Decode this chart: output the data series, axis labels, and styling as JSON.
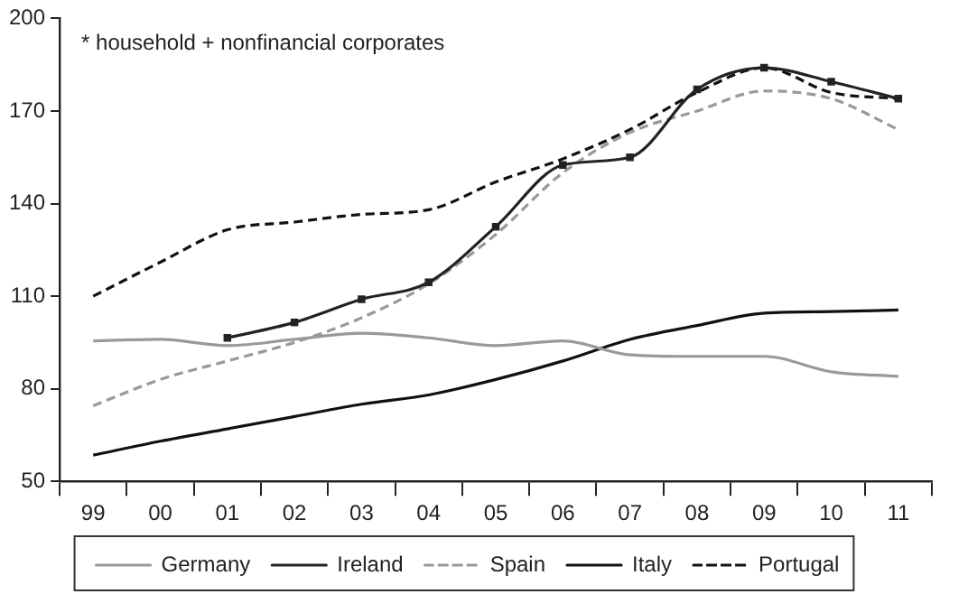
{
  "chart_data": {
    "type": "line",
    "annotations": [
      "* household + nonfinancial corporates"
    ],
    "categories": [
      "99",
      "00",
      "01",
      "02",
      "03",
      "04",
      "05",
      "06",
      "07",
      "08",
      "09",
      "10",
      "11"
    ],
    "ylim": [
      50,
      200
    ],
    "yticks": [
      50,
      80,
      110,
      140,
      170,
      200
    ],
    "legend": "bottom",
    "series": [
      {
        "name": "Germany",
        "color": "#999999",
        "line_style": "solid",
        "marker": "none",
        "values": [
          95.5,
          96,
          94,
          96,
          98,
          96.5,
          94,
          95.5,
          91,
          90.5,
          90.5,
          85.5,
          84
        ]
      },
      {
        "name": "Ireland",
        "color": "#222222",
        "line_style": "solid",
        "marker": "square",
        "values": [
          null,
          null,
          96.5,
          101.5,
          109,
          114.5,
          132.5,
          152.5,
          155,
          177,
          184,
          179.5,
          174
        ]
      },
      {
        "name": "Spain",
        "color": "#999999",
        "line_style": "dashed",
        "marker": "none",
        "values": [
          74.5,
          83,
          89,
          95,
          103,
          114,
          130,
          150,
          163,
          170,
          176.5,
          174,
          164
        ]
      },
      {
        "name": "Italy",
        "color": "#111111",
        "line_style": "solid",
        "marker": "none",
        "values": [
          58.5,
          63,
          67,
          71,
          75,
          78,
          83,
          89,
          96,
          100.5,
          104.5,
          105,
          105.5
        ]
      },
      {
        "name": "Portugal",
        "color": "#111111",
        "line_style": "dashed",
        "marker": "none",
        "values": [
          110,
          121,
          131.5,
          134,
          136.5,
          138,
          147,
          154.5,
          164,
          176,
          184,
          176,
          174
        ]
      }
    ]
  }
}
